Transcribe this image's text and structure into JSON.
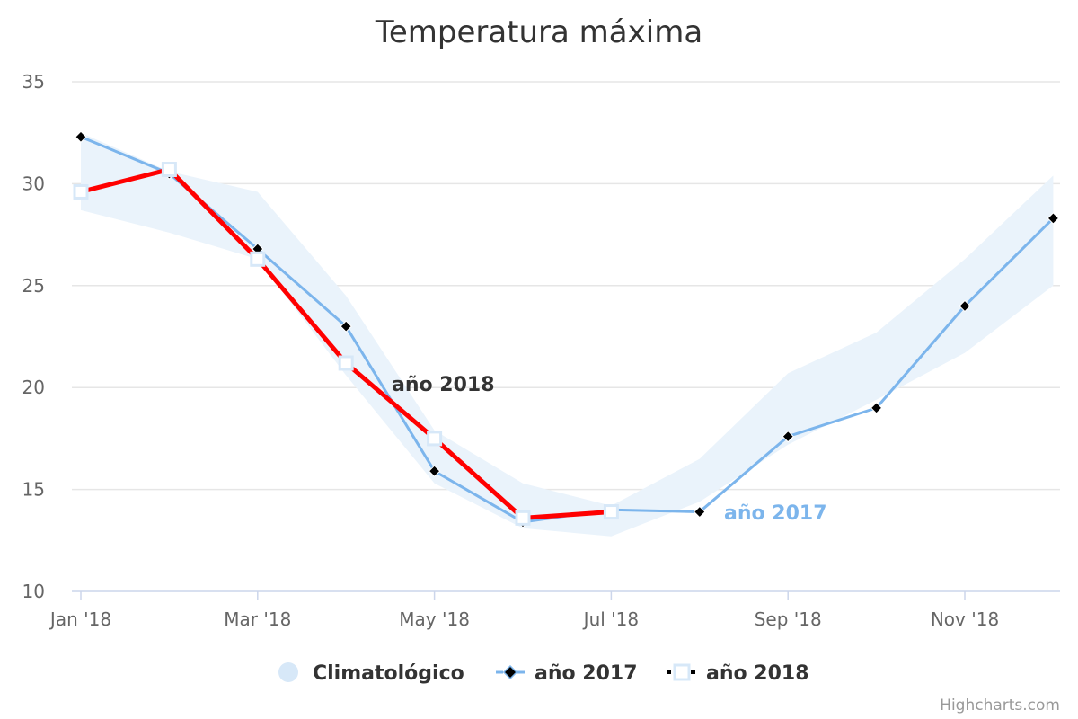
{
  "chart_data": {
    "type": "line",
    "title": "Temperatura máxima",
    "x": [
      "2018-01",
      "2018-02",
      "2018-03",
      "2018-04",
      "2018-05",
      "2018-06",
      "2018-07",
      "2018-08",
      "2018-09",
      "2018-10",
      "2018-11",
      "2018-12"
    ],
    "x_tick_labels": [
      "Jan '18",
      "Mar '18",
      "May '18",
      "Jul '18",
      "Sep '18",
      "Nov '18"
    ],
    "y_ticks": [
      "10",
      "15",
      "20",
      "25",
      "30",
      "35"
    ],
    "ylim": [
      10,
      35
    ],
    "grid": true,
    "legend_placement": "bottom-center",
    "series": [
      {
        "name": "Climatológico",
        "type": "arearange",
        "color": "#eaf3fb",
        "low": [
          28.7,
          27.6,
          26.3,
          20.6,
          15.3,
          13.1,
          12.7,
          14.4,
          17.2,
          19.4,
          21.7,
          25.0
        ],
        "high": [
          32.5,
          30.6,
          29.6,
          24.5,
          17.9,
          15.3,
          14.2,
          16.5,
          20.7,
          22.7,
          26.3,
          30.4
        ]
      },
      {
        "name": "año 2017",
        "type": "line",
        "color": "#7cb5ec",
        "marker": "diamond",
        "values": [
          32.3,
          30.5,
          26.8,
          23.0,
          15.9,
          13.4,
          14.0,
          13.9,
          17.6,
          19.0,
          24.0,
          28.3
        ]
      },
      {
        "name": "año 2018",
        "type": "line",
        "color": "#ff0000",
        "marker": "square",
        "values": [
          29.6,
          30.7,
          26.3,
          21.2,
          17.5,
          13.6,
          13.9,
          null,
          null,
          null,
          null,
          null
        ]
      }
    ],
    "annotations": [
      {
        "text": "año 2018",
        "series": "año 2018",
        "color": "#333333"
      },
      {
        "text": "año 2017",
        "series": "año 2017",
        "color": "#7cb5ec"
      }
    ]
  },
  "credits": "Highcharts.com"
}
